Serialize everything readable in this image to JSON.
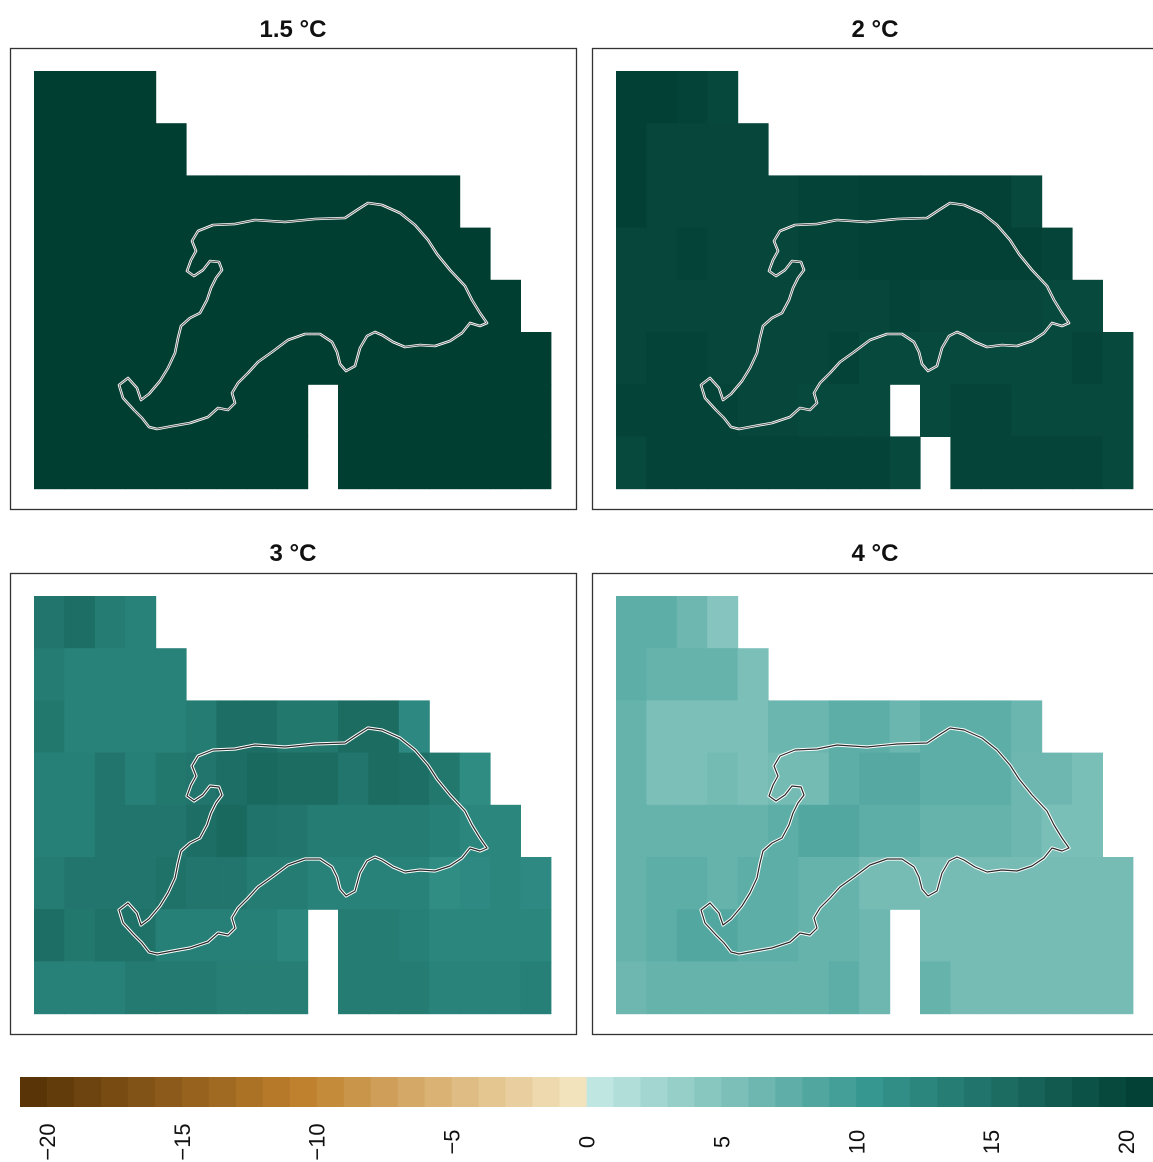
{
  "chart_data": {
    "type": "heatmap",
    "colorbar": {
      "min": -21,
      "max": 21,
      "step": 1,
      "ticks": [
        -20,
        -15,
        -10,
        -5,
        0,
        5,
        10,
        15,
        20
      ],
      "tick_labels": [
        "−20",
        "−15",
        "−10",
        "−5",
        "0",
        "5",
        "10",
        "15",
        "20"
      ],
      "colors": {
        "neg_max": "#543005",
        "neg_mid": "#BF812D",
        "neg_low": "#F6E8C3",
        "zero": "#F5F5F5",
        "pos_low": "#C7EAE5",
        "pos_mid": "#35978F",
        "pos_max": "#003C30"
      }
    },
    "panels": [
      {
        "title": "1.5 °C",
        "grid": [
          [
            20.8,
            20.8,
            20.8,
            20.8,
            null,
            null,
            null,
            null,
            null,
            null,
            null,
            null,
            null,
            null,
            null,
            null,
            null
          ],
          [
            20.8,
            20.8,
            20.8,
            20.8,
            20.8,
            null,
            null,
            null,
            null,
            null,
            null,
            null,
            null,
            null,
            null,
            null,
            null
          ],
          [
            20.8,
            20.8,
            20.8,
            20.8,
            20.8,
            20.8,
            20.8,
            20.8,
            20.8,
            20.8,
            20.8,
            20.8,
            20.8,
            20.8,
            null,
            null,
            null
          ],
          [
            20.8,
            20.8,
            20.8,
            20.8,
            20.8,
            20.8,
            20.8,
            20.8,
            20.8,
            20.8,
            20.8,
            20.8,
            20.8,
            20.8,
            20.8,
            null,
            null
          ],
          [
            20.8,
            20.8,
            20.8,
            20.8,
            20.8,
            20.8,
            20.8,
            20.8,
            20.8,
            20.8,
            20.8,
            20.8,
            20.8,
            20.8,
            20.8,
            20.8,
            null
          ],
          [
            20.8,
            20.8,
            20.8,
            20.8,
            20.8,
            20.8,
            20.8,
            20.8,
            20.8,
            20.8,
            20.8,
            20.8,
            20.8,
            20.8,
            20.8,
            20.8,
            20.8
          ],
          [
            20.8,
            20.8,
            20.8,
            20.8,
            20.8,
            20.8,
            20.8,
            20.8,
            20.8,
            null,
            20.8,
            20.8,
            20.8,
            20.8,
            20.8,
            20.8,
            20.8
          ],
          [
            20.8,
            20.8,
            20.8,
            20.8,
            20.8,
            20.8,
            20.8,
            20.8,
            20.8,
            null,
            20.8,
            20.8,
            20.8,
            20.8,
            20.8,
            20.8,
            20.8
          ]
        ]
      },
      {
        "title": "2 °C",
        "grid": [
          [
            20.6,
            20.6,
            20.2,
            19.6,
            null,
            null,
            null,
            null,
            null,
            null,
            null,
            null,
            null,
            null,
            null,
            null,
            null
          ],
          [
            20.6,
            19.8,
            19.8,
            19.8,
            19.8,
            null,
            null,
            null,
            null,
            null,
            null,
            null,
            null,
            null,
            null,
            null,
            null
          ],
          [
            20.6,
            19.8,
            19.8,
            19.8,
            19.8,
            19.8,
            20.2,
            20.2,
            20.5,
            20.5,
            20.5,
            20.5,
            20.5,
            19.5,
            null,
            null,
            null
          ],
          [
            19.8,
            19.8,
            20.2,
            19.8,
            19.8,
            19.8,
            20.2,
            20.2,
            20.5,
            20.5,
            20.5,
            20.5,
            20.5,
            20.5,
            20.0,
            null,
            null
          ],
          [
            19.8,
            19.8,
            19.8,
            19.8,
            19.8,
            19.8,
            19.8,
            19.8,
            19.8,
            20.2,
            19.8,
            19.8,
            19.8,
            19.8,
            19.5,
            19.5,
            null
          ],
          [
            19.8,
            20.2,
            20.2,
            19.8,
            19.8,
            19.8,
            19.8,
            20.2,
            19.5,
            19.5,
            19.5,
            19.5,
            19.5,
            19.5,
            19.5,
            20.0,
            19.5
          ],
          [
            20.2,
            20.2,
            20.2,
            20.2,
            19.8,
            19.8,
            19.5,
            19.5,
            19.5,
            null,
            19.5,
            20.0,
            20.0,
            19.5,
            19.5,
            19.5,
            19.5
          ],
          [
            19.5,
            20.2,
            20.2,
            20.2,
            20.2,
            20.2,
            20.2,
            20.2,
            20.2,
            19.5,
            null,
            20.0,
            20.0,
            20.0,
            20.0,
            20.0,
            19.5
          ]
        ]
      },
      {
        "title": "3 °C",
        "grid": [
          [
            14.4,
            15.2,
            13.6,
            12.9,
            null,
            null,
            null,
            null,
            null,
            null,
            null,
            null,
            null,
            null,
            null,
            null,
            null
          ],
          [
            13.6,
            12.9,
            12.9,
            12.9,
            12.9,
            null,
            null,
            null,
            null,
            null,
            null,
            null,
            null,
            null,
            null,
            null,
            null
          ],
          [
            14.1,
            12.9,
            12.9,
            12.9,
            12.9,
            13.6,
            15.2,
            15.2,
            14.1,
            14.1,
            15.5,
            15.5,
            12.2,
            null,
            null,
            null,
            null
          ],
          [
            13.2,
            13.2,
            14.4,
            13.2,
            14.1,
            14.4,
            15.2,
            15.8,
            15.5,
            15.5,
            14.4,
            15.5,
            15.2,
            14.1,
            11.8,
            null,
            null
          ],
          [
            13.2,
            13.2,
            14.4,
            14.4,
            14.4,
            15.2,
            15.8,
            14.6,
            14.4,
            13.6,
            13.6,
            13.6,
            13.6,
            13.2,
            12.4,
            12.4,
            null
          ],
          [
            13.6,
            14.4,
            14.4,
            14.4,
            14.8,
            14.4,
            14.4,
            13.6,
            13.6,
            12.9,
            12.9,
            12.9,
            12.9,
            11.7,
            12.1,
            12.4,
            12.1
          ],
          [
            15.2,
            14.1,
            14.8,
            14.8,
            13.2,
            13.2,
            13.2,
            13.2,
            12.4,
            null,
            13.6,
            13.6,
            13.2,
            12.4,
            12.4,
            12.4,
            12.4
          ],
          [
            13.0,
            13.0,
            13.0,
            13.8,
            13.8,
            13.8,
            13.4,
            13.4,
            13.4,
            null,
            13.6,
            13.6,
            13.6,
            12.8,
            12.8,
            12.8,
            13.2
          ]
        ]
      },
      {
        "title": "4 °C",
        "grid": [
          [
            7.6,
            7.6,
            6.5,
            4.7,
            null,
            null,
            null,
            null,
            null,
            null,
            null,
            null,
            null,
            null,
            null,
            null,
            null
          ],
          [
            7.6,
            7.0,
            7.0,
            7.0,
            5.4,
            null,
            null,
            null,
            null,
            null,
            null,
            null,
            null,
            null,
            null,
            null,
            null
          ],
          [
            7.0,
            5.4,
            5.4,
            5.4,
            5.4,
            6.6,
            6.6,
            7.6,
            7.6,
            6.6,
            7.6,
            7.6,
            7.6,
            6.6,
            null,
            null,
            null
          ],
          [
            7.0,
            5.4,
            5.4,
            6.0,
            5.4,
            6.0,
            6.0,
            7.6,
            8.2,
            8.2,
            7.6,
            7.6,
            7.6,
            6.4,
            6.4,
            5.6,
            null
          ],
          [
            7.0,
            7.0,
            7.0,
            7.0,
            7.0,
            7.6,
            8.4,
            8.4,
            7.6,
            7.6,
            7.0,
            7.0,
            7.0,
            6.4,
            5.6,
            5.6,
            null
          ],
          [
            7.0,
            7.6,
            7.6,
            7.0,
            7.6,
            7.6,
            7.0,
            7.0,
            5.8,
            5.8,
            5.8,
            5.8,
            5.8,
            5.8,
            5.8,
            5.8,
            5.8
          ],
          [
            7.0,
            7.6,
            8.4,
            8.4,
            7.6,
            7.6,
            7.0,
            7.0,
            6.4,
            null,
            5.8,
            5.8,
            5.8,
            5.8,
            5.8,
            5.8,
            5.8
          ],
          [
            6.4,
            7.0,
            7.0,
            7.0,
            7.0,
            7.0,
            7.0,
            7.6,
            6.4,
            null,
            7.0,
            5.8,
            5.8,
            5.8,
            5.8,
            5.8,
            5.8
          ]
        ]
      }
    ]
  }
}
